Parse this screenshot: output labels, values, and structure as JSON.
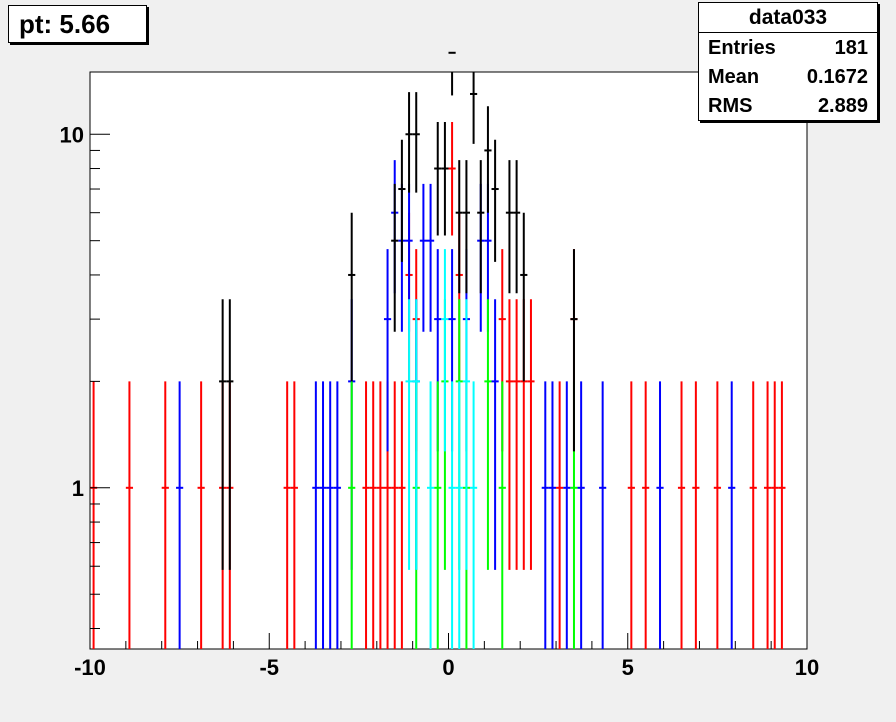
{
  "title": {
    "text": "pt: 5.66"
  },
  "stats": {
    "name": "data033",
    "rows": [
      {
        "label": "Entries",
        "value": "181"
      },
      {
        "label": "Mean",
        "value": "0.1672"
      },
      {
        "label": "RMS",
        "value": "2.889"
      }
    ]
  },
  "chart_data": {
    "type": "histogram-errorbars",
    "xlim": [
      -10,
      10
    ],
    "ylim": [
      0.35,
      15
    ],
    "yscale": "log",
    "grid": false,
    "x_ticks": [
      "-10",
      "-5",
      "0",
      "5",
      "10"
    ],
    "y_ticks": [
      "1",
      "10"
    ],
    "bin_halfwidth": 0.1,
    "series": [
      {
        "color": "#ff0000",
        "points": [
          {
            "x": -9.9,
            "y": 1
          },
          {
            "x": -8.9,
            "y": 1
          },
          {
            "x": -7.9,
            "y": 1
          },
          {
            "x": -6.9,
            "y": 1
          },
          {
            "x": -6.3,
            "y": 1
          },
          {
            "x": -6.1,
            "y": 1
          },
          {
            "x": -4.5,
            "y": 1
          },
          {
            "x": -4.3,
            "y": 1
          },
          {
            "x": -2.3,
            "y": 1
          },
          {
            "x": -2.1,
            "y": 1
          },
          {
            "x": -1.9,
            "y": 1
          },
          {
            "x": -1.7,
            "y": 1
          },
          {
            "x": -1.5,
            "y": 1
          },
          {
            "x": -1.3,
            "y": 1
          },
          {
            "x": -1.1,
            "y": 4
          },
          {
            "x": -0.9,
            "y": 3
          },
          {
            "x": 0.1,
            "y": 8
          },
          {
            "x": 0.3,
            "y": 4
          },
          {
            "x": 1.5,
            "y": 3
          },
          {
            "x": 1.7,
            "y": 2
          },
          {
            "x": 1.9,
            "y": 2
          },
          {
            "x": 2.1,
            "y": 2
          },
          {
            "x": 2.3,
            "y": 2
          },
          {
            "x": 3.1,
            "y": 1
          },
          {
            "x": 3.5,
            "y": 3
          },
          {
            "x": 5.1,
            "y": 1
          },
          {
            "x": 5.5,
            "y": 1
          },
          {
            "x": 6.5,
            "y": 1
          },
          {
            "x": 6.9,
            "y": 1
          },
          {
            "x": 7.5,
            "y": 1
          },
          {
            "x": 8.5,
            "y": 1
          },
          {
            "x": 8.9,
            "y": 1
          },
          {
            "x": 9.1,
            "y": 1
          },
          {
            "x": 9.3,
            "y": 1
          }
        ]
      },
      {
        "color": "#0000ff",
        "points": [
          {
            "x": -7.5,
            "y": 1
          },
          {
            "x": -3.7,
            "y": 1
          },
          {
            "x": -3.5,
            "y": 1
          },
          {
            "x": -3.3,
            "y": 1
          },
          {
            "x": -3.1,
            "y": 1
          },
          {
            "x": -2.7,
            "y": 2
          },
          {
            "x": -1.7,
            "y": 3
          },
          {
            "x": -1.5,
            "y": 6
          },
          {
            "x": -1.3,
            "y": 5
          },
          {
            "x": -1.1,
            "y": 5
          },
          {
            "x": -0.9,
            "y": 2
          },
          {
            "x": -0.7,
            "y": 5
          },
          {
            "x": -0.5,
            "y": 5
          },
          {
            "x": -0.3,
            "y": 3
          },
          {
            "x": 0.1,
            "y": 3
          },
          {
            "x": 0.5,
            "y": 3
          },
          {
            "x": 0.9,
            "y": 5
          },
          {
            "x": 1.1,
            "y": 5
          },
          {
            "x": 1.3,
            "y": 2
          },
          {
            "x": 2.7,
            "y": 1
          },
          {
            "x": 2.9,
            "y": 1
          },
          {
            "x": 3.3,
            "y": 1
          },
          {
            "x": 3.7,
            "y": 1
          },
          {
            "x": 4.3,
            "y": 1
          },
          {
            "x": 5.9,
            "y": 1
          },
          {
            "x": 7.9,
            "y": 1
          }
        ]
      },
      {
        "color": "#00ff00",
        "points": [
          {
            "x": -2.7,
            "y": 1
          },
          {
            "x": -0.9,
            "y": 1
          },
          {
            "x": -0.3,
            "y": 1
          },
          {
            "x": -0.1,
            "y": 2
          },
          {
            "x": 0.3,
            "y": 2
          },
          {
            "x": 0.5,
            "y": 1
          },
          {
            "x": 1.1,
            "y": 2
          },
          {
            "x": 1.5,
            "y": 1
          },
          {
            "x": 3.5,
            "y": 1
          }
        ]
      },
      {
        "color": "#00ffff",
        "points": [
          {
            "x": -1.1,
            "y": 2
          },
          {
            "x": -0.9,
            "y": 2
          },
          {
            "x": -0.5,
            "y": 1
          },
          {
            "x": -0.1,
            "y": 3
          },
          {
            "x": 0.1,
            "y": 1
          },
          {
            "x": 0.3,
            "y": 1
          },
          {
            "x": 0.5,
            "y": 2
          },
          {
            "x": 0.7,
            "y": 1
          }
        ]
      },
      {
        "color": "#000000",
        "points": [
          {
            "x": -6.3,
            "y": 2
          },
          {
            "x": -6.1,
            "y": 2
          },
          {
            "x": -2.7,
            "y": 4
          },
          {
            "x": -1.5,
            "y": 5
          },
          {
            "x": -1.3,
            "y": 7
          },
          {
            "x": -1.1,
            "y": 10
          },
          {
            "x": -0.9,
            "y": 10
          },
          {
            "x": -0.3,
            "y": 8
          },
          {
            "x": -0.1,
            "y": 8
          },
          {
            "x": 0.1,
            "y": 17
          },
          {
            "x": 0.3,
            "y": 6
          },
          {
            "x": 0.5,
            "y": 6
          },
          {
            "x": 0.7,
            "y": 13
          },
          {
            "x": 0.9,
            "y": 6
          },
          {
            "x": 1.1,
            "y": 9
          },
          {
            "x": 1.3,
            "y": 7
          },
          {
            "x": 1.7,
            "y": 6
          },
          {
            "x": 1.9,
            "y": 6
          },
          {
            "x": 2.1,
            "y": 4
          },
          {
            "x": 3.5,
            "y": 3
          }
        ]
      }
    ]
  }
}
